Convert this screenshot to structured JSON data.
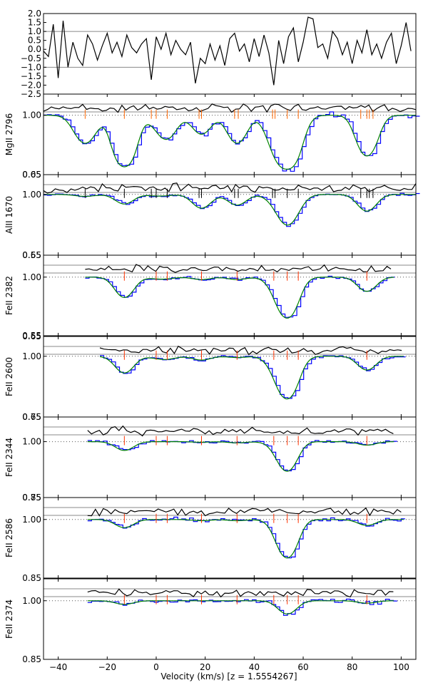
{
  "chart_data": {
    "type": "line",
    "title": "",
    "xlabel": "Velocity (km/s) [z = 1.5554267]",
    "xlim": [
      -46,
      106
    ],
    "x_ticks": [
      -40,
      -20,
      0,
      20,
      40,
      60,
      80,
      100
    ],
    "x_tick_labels": [
      "−40",
      "−20",
      "0",
      "20",
      "40",
      "60",
      "80",
      "100"
    ],
    "components": [
      -13,
      0,
      4.5,
      18.5,
      33,
      48,
      53.5,
      58,
      86
    ],
    "components_mgii": [
      -29,
      -13,
      -2,
      0,
      4.5,
      17.5,
      18.5,
      32,
      33.5,
      47.5,
      48.5,
      53.5,
      58,
      83.5,
      86,
      87,
      88.5
    ],
    "residual_panel": {
      "ylim": [
        -2.5,
        2.0
      ],
      "y_ticks": [
        -2.5,
        -2.0,
        -1.5,
        -1.0,
        -0.5,
        0.0,
        0.5,
        1.0,
        1.5,
        2.0
      ],
      "y_tick_labels": [
        "−2.5",
        "−2.0",
        "−1.5",
        "−1.0",
        "−0.5",
        "0.0",
        "0.5",
        "1.0",
        "1.5",
        "2.0"
      ],
      "reference_lines": [
        -1.0,
        1.0
      ],
      "x": [
        -46,
        -44,
        -42,
        -40,
        -38,
        -36,
        -34,
        -32,
        -30,
        -28,
        -26,
        -24,
        -22,
        -20,
        -18,
        -16,
        -14,
        -12,
        -10,
        -8,
        -6,
        -4,
        -2,
        0,
        2,
        4,
        6,
        8,
        10,
        12,
        14,
        16,
        18,
        20,
        22,
        24,
        26,
        28,
        30,
        32,
        34,
        36,
        38,
        40,
        42,
        44,
        46,
        48,
        50,
        52,
        54,
        56,
        58,
        60,
        62,
        64,
        66,
        68,
        70,
        72,
        74,
        76,
        78,
        80,
        82,
        84,
        86,
        88,
        90,
        92,
        94,
        96,
        98,
        100,
        102,
        104
      ],
      "y": [
        -0.1,
        -0.4,
        1.4,
        -1.6,
        1.6,
        -1.0,
        0.4,
        -0.5,
        -0.9,
        0.8,
        0.3,
        -0.6,
        0.2,
        0.9,
        -0.2,
        0.4,
        -0.4,
        0.8,
        0.1,
        -0.2,
        0.3,
        0.6,
        -1.7,
        0.7,
        0.0,
        0.9,
        -0.3,
        0.5,
        0.0,
        -0.3,
        0.4,
        -1.9,
        -0.5,
        -0.8,
        0.3,
        -0.6,
        0.2,
        -0.9,
        0.6,
        0.9,
        -0.1,
        0.3,
        -0.7,
        0.6,
        -0.4,
        0.8,
        -0.2,
        -2.0,
        0.5,
        -0.8,
        0.7,
        1.2,
        -0.7,
        0.4,
        1.8,
        1.7,
        0.1,
        0.3,
        -0.5,
        1.0,
        0.6,
        -0.3,
        0.4,
        -0.8,
        0.5,
        -0.2,
        1.1,
        -0.3,
        0.3,
        -0.5,
        0.4,
        0.9,
        -0.8,
        0.2,
        1.5,
        -0.1
      ]
    },
    "panels": [
      {
        "label": "MgII 2796",
        "ylim": [
          0.05,
          1.3
        ],
        "y_ticks": [
          0.05,
          1.0
        ],
        "y_tick_labels": [
          "0.05",
          "1.00"
        ],
        "data_start": -46,
        "data_end": 106,
        "noise": 0.2,
        "tick_style": "mgii",
        "amps": [
          0.3,
          0.04,
          1.0,
          0.05,
          0.22,
          0.18,
          0.3,
          0.22,
          1.1,
          0.1,
          0.55
        ]
      },
      {
        "label": "AlII 1670",
        "ylim": [
          0.65,
          1.1
        ],
        "y_ticks": [
          0.65,
          1.0
        ],
        "y_tick_labels": [
          "0.65",
          "1.00"
        ],
        "top_label": "0.65",
        "data_start": -46,
        "data_end": 106,
        "noise": 0.1,
        "tick_style": "alii",
        "amps": [
          0.015,
          0.01,
          0.08,
          0.01,
          0.005,
          0.12,
          0.09,
          0.04,
          0.3,
          0.04,
          0.15
        ]
      },
      {
        "label": "FeII 2382",
        "ylim": [
          0.55,
          1.15
        ],
        "y_ticks": [
          0.55,
          1.0
        ],
        "y_tick_labels": [
          "0.55",
          "1.00"
        ],
        "top_label": "0.55",
        "data_start": -29,
        "data_end": 97,
        "noise": 0.1,
        "tick_style": "red",
        "amps": [
          0,
          0.005,
          0.2,
          0.01,
          0.01,
          0.02,
          0.02,
          0.05,
          0.55,
          0.02,
          0.13
        ]
      },
      {
        "label": "FeII 2600",
        "ylim": [
          0.65,
          1.1
        ],
        "y_ticks": [
          0.65,
          1.0
        ],
        "y_tick_labels": [
          "0.65",
          "1.00"
        ],
        "top_label": "0.65",
        "data_start": -23,
        "data_end": 101,
        "noise": 0.1,
        "tick_style": "red",
        "amps": [
          0,
          0.005,
          0.15,
          0.01,
          0.02,
          0.03,
          0.01,
          0.06,
          0.55,
          0.02,
          0.12
        ]
      },
      {
        "label": "FeII 2344",
        "ylim": [
          0.75,
          1.1
        ],
        "y_ticks": [
          0.75,
          1.0
        ],
        "y_tick_labels": [
          "0.75",
          "1.00"
        ],
        "top_label": "0.75",
        "data_start": -28,
        "data_end": 97,
        "noise": 0.12,
        "tick_style": "red",
        "amps": [
          0,
          0,
          0.08,
          0,
          0,
          0.005,
          0.01,
          0.02,
          0.35,
          0,
          0.03
        ]
      },
      {
        "label": "FeII 2586",
        "ylim": [
          0.85,
          1.05
        ],
        "y_ticks": [
          0.85,
          1.0
        ],
        "y_tick_labels": [
          "0.85",
          "1.00"
        ],
        "top_label": "0.85",
        "data_start": -28,
        "data_end": 101,
        "noise": 0.15,
        "tick_style": "red",
        "amps": [
          0,
          0,
          0.07,
          0,
          0,
          0.01,
          0.01,
          0.02,
          0.5,
          0,
          0.05
        ]
      },
      {
        "label": "FeII 2374",
        "ylim": [
          0.85,
          1.05
        ],
        "y_ticks": [
          0.85,
          1.0
        ],
        "y_tick_labels": [
          "0.85",
          "1.00"
        ],
        "data_start": -28,
        "data_end": 97,
        "noise": 0.15,
        "tick_style": "red",
        "amps": [
          0,
          0,
          0.03,
          0,
          0,
          0,
          0,
          0,
          0.12,
          0,
          0.02
        ]
      }
    ],
    "colors": {
      "data": "#0000ff",
      "model": "#008000",
      "residual": "#000000",
      "red_tick": "#ff3300",
      "mgii_tick": "#ff6600",
      "alii_tick": "#000000"
    },
    "grid": false,
    "legend": "none"
  }
}
